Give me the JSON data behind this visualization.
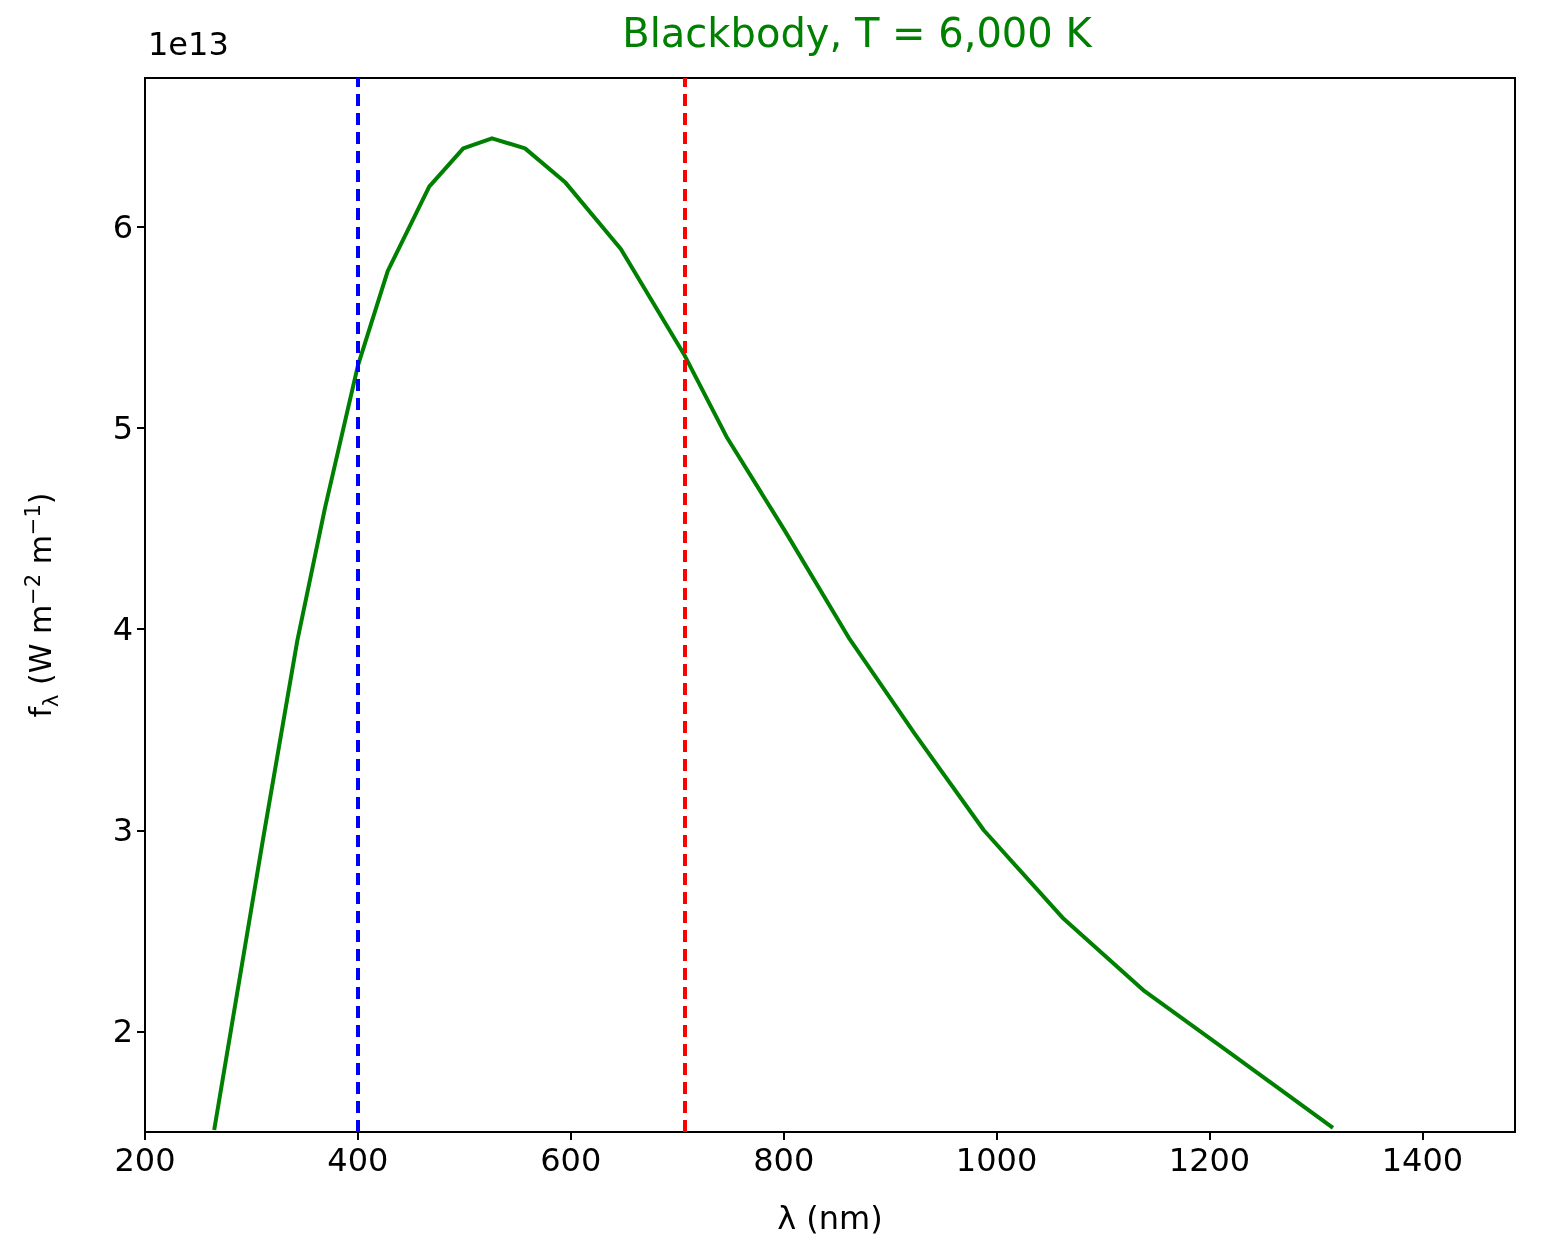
{
  "chart_data": {
    "type": "line",
    "title": "Blackbody, T = 6,000 K",
    "xlabel": "λ (nm)",
    "ylabel": "f$_{λ}$ (W m$^{−2}$ m$^{−1}$)",
    "annotations": [
      "1e13"
    ],
    "x": [
      265,
      311,
      343,
      369,
      400,
      428,
      467,
      499,
      526,
      557,
      595,
      647,
      707,
      747,
      801,
      862,
      923,
      988,
      1063,
      1139,
      1215,
      1316
    ],
    "series": [
      {
        "color": "#008000",
        "values": [
          1.51,
          2.96,
          3.94,
          4.6,
          5.31,
          5.78,
          6.2,
          6.39,
          6.44,
          6.39,
          6.22,
          5.89,
          5.36,
          4.95,
          4.49,
          3.95,
          3.48,
          3.0,
          2.56,
          2.2,
          1.91,
          1.52
        ]
      }
    ],
    "xlim": [
      200,
      1487
    ],
    "xticks": [
      200,
      400,
      600,
      800,
      1000,
      1200,
      1400
    ],
    "ylim": [
      1.5,
      6.74
    ],
    "yticks": [
      2,
      3,
      4,
      5,
      6
    ],
    "ref_lines": [
      {
        "axis": "x",
        "value": 400,
        "color": "#0000ff",
        "line_style": "dashed"
      },
      {
        "axis": "x",
        "value": 707,
        "color": "#ff0000",
        "line_style": "dashed"
      }
    ],
    "grid": false,
    "marker": "none",
    "line_style": "solid"
  }
}
